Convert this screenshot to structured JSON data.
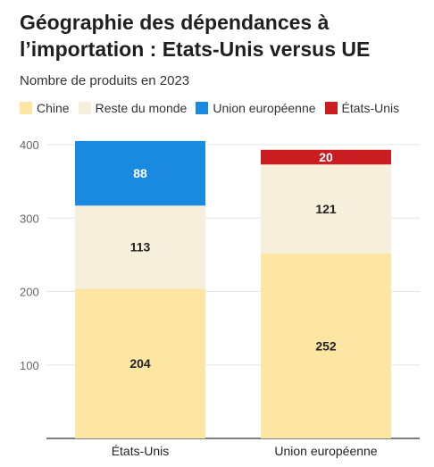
{
  "title": "Géographie des dépendances à l’importation : Etats-Unis versus UE",
  "subtitle": "Nombre de produits en 2023",
  "chart_data": {
    "type": "bar",
    "stacked": true,
    "categories": [
      "États-Unis",
      "Union européenne"
    ],
    "series": [
      {
        "name": "Chine",
        "color": "#fde5a3",
        "values": [
          204,
          252
        ]
      },
      {
        "name": "Reste du monde",
        "color": "#f5efdc",
        "values": [
          113,
          121
        ]
      },
      {
        "name": "Union européenne",
        "color": "#1a8ae0",
        "values": [
          88,
          null
        ]
      },
      {
        "name": "États-Unis",
        "color": "#c91d22",
        "values": [
          null,
          20
        ]
      }
    ],
    "ylim": [
      0,
      400
    ],
    "yticks": [
      100,
      200,
      300,
      400
    ],
    "grid": true,
    "legend_position": "top"
  }
}
